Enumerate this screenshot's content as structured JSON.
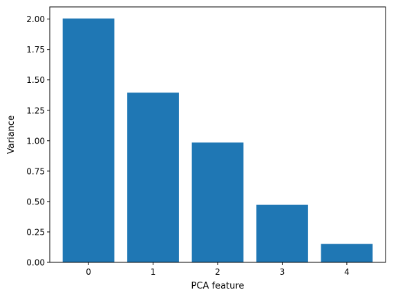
{
  "chart_data": {
    "type": "bar",
    "categories": [
      "0",
      "1",
      "2",
      "3",
      "4"
    ],
    "values": [
      2.005,
      1.395,
      0.985,
      0.473,
      0.152
    ],
    "title": "",
    "xlabel": "PCA feature",
    "ylabel": "Variance",
    "ylim": [
      0,
      2.1
    ],
    "xlim": [
      -0.6,
      4.6
    ],
    "yticks": [
      0.0,
      0.25,
      0.5,
      0.75,
      1.0,
      1.25,
      1.5,
      1.75,
      2.0
    ],
    "ytick_labels": [
      "0.00",
      "0.25",
      "0.50",
      "0.75",
      "1.00",
      "1.25",
      "1.50",
      "1.75",
      "2.00"
    ],
    "bar_color": "#1f77b4",
    "grid": false,
    "legend": "none"
  }
}
